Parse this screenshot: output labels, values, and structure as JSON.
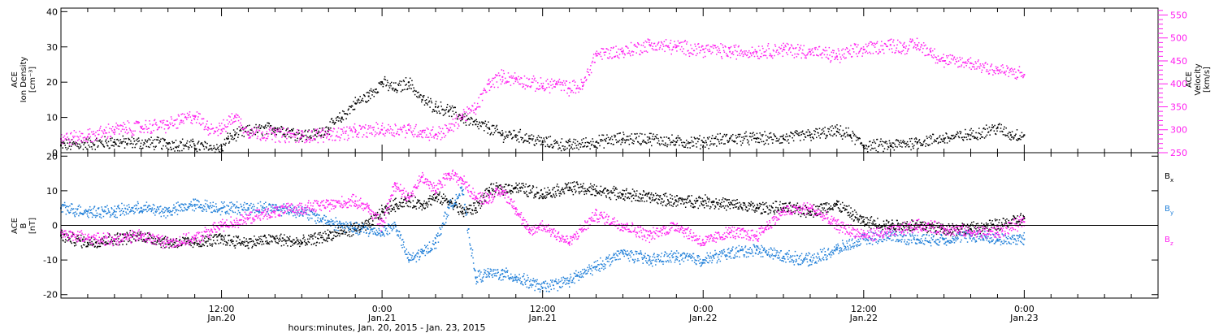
{
  "colors": {
    "black": "#000000",
    "magenta": "#ff20f0",
    "blue": "#1e7ed8",
    "axis": "#000000",
    "background": "#ffffff"
  },
  "xaxis": {
    "ticks": [
      {
        "time": "12:00",
        "date": "Jan.20",
        "hours": 12
      },
      {
        "time": "0:00",
        "date": "Jan.21",
        "hours": 24
      },
      {
        "time": "12:00",
        "date": "Jan.21",
        "hours": 36
      },
      {
        "time": "0:00",
        "date": "Jan.22",
        "hours": 48
      },
      {
        "time": "12:00",
        "date": "Jan.22",
        "hours": 60
      },
      {
        "time": "0:00",
        "date": "Jan.23",
        "hours": 72
      }
    ],
    "label": "hours:minutes, Jan. 20, 2015 - Jan. 23, 2015"
  },
  "chart_data": [
    {
      "type": "scatter",
      "xlabel": "hours:minutes, Jan. 20, 2015 - Jan. 23, 2015",
      "xlim": [
        0,
        82
      ],
      "ylabel_left": [
        "ACE",
        "Ion Density",
        "[cm⁻³]"
      ],
      "ylabel_right": [
        "ACE",
        "Velocity",
        "[km/s]"
      ],
      "ylim_left": [
        0,
        41
      ],
      "ylim_right": [
        250,
        565
      ],
      "yticks_left": [
        0,
        10,
        20,
        30,
        40
      ],
      "yticks_right": [
        250,
        300,
        350,
        400,
        450,
        500,
        550
      ],
      "series": [
        {
          "name": "Ion Density",
          "axis": "left",
          "color": "#000000",
          "x": [
            0,
            4,
            8,
            10,
            12,
            12.5,
            13,
            14,
            16,
            18,
            19,
            20,
            21,
            22,
            23,
            24,
            25,
            26,
            27,
            28,
            29,
            30,
            31,
            32,
            33,
            34,
            35,
            36,
            38,
            40,
            42,
            44,
            46,
            48,
            50,
            52,
            54,
            56,
            58,
            59,
            60,
            62,
            64,
            66,
            68,
            70,
            71,
            72
          ],
          "values": [
            2,
            3,
            2.5,
            2,
            1,
            4,
            5,
            6,
            7,
            5,
            5,
            7,
            10,
            14,
            16,
            20,
            18,
            20,
            15,
            13,
            12,
            10,
            8,
            7,
            5,
            5,
            4,
            3,
            2,
            3,
            4,
            4,
            3,
            3,
            4,
            4,
            4,
            5,
            6,
            5,
            2,
            2,
            3,
            4,
            5,
            7,
            5,
            5
          ]
        },
        {
          "name": "Velocity",
          "axis": "right",
          "color": "#ff20f0",
          "x": [
            0,
            2,
            4,
            6,
            8,
            9,
            10,
            11,
            12,
            13,
            14,
            16,
            18,
            20,
            22,
            24,
            26,
            27,
            28,
            29,
            30,
            31,
            32,
            33,
            34,
            36,
            37,
            38,
            39,
            40,
            42,
            44,
            46,
            48,
            50,
            52,
            54,
            56,
            58,
            60,
            62,
            63,
            64,
            65,
            66,
            68,
            70,
            72
          ],
          "values": [
            280,
            285,
            300,
            305,
            310,
            320,
            330,
            305,
            300,
            330,
            295,
            290,
            285,
            290,
            295,
            300,
            300,
            295,
            290,
            300,
            330,
            345,
            400,
            415,
            410,
            395,
            400,
            390,
            395,
            465,
            470,
            485,
            480,
            475,
            470,
            470,
            475,
            470,
            460,
            475,
            485,
            480,
            485,
            470,
            450,
            445,
            430,
            420
          ]
        }
      ]
    },
    {
      "type": "scatter",
      "xlabel": "hours:minutes, Jan. 20, 2015 - Jan. 23, 2015",
      "xlim": [
        0,
        82
      ],
      "ylabel": [
        "ACE",
        "B",
        "[nT]"
      ],
      "ylim": [
        -21,
        21
      ],
      "yticks": [
        -20,
        -10,
        0,
        10,
        20
      ],
      "legend": [
        "B",
        "B",
        "B"
      ],
      "legend_subscripts": [
        "x",
        "y",
        "z"
      ],
      "legend_colors": [
        "#000000",
        "#1e7ed8",
        "#ff20f0"
      ],
      "legend_position": "right",
      "series": [
        {
          "name": "Bx",
          "color": "#000000",
          "x": [
            0,
            2,
            4,
            6,
            8,
            10,
            12,
            14,
            16,
            18,
            20,
            22,
            23,
            24,
            25,
            26,
            27,
            28,
            29,
            30,
            31,
            32,
            34,
            36,
            38,
            40,
            42,
            44,
            46,
            48,
            50,
            52,
            54,
            56,
            58,
            60,
            62,
            64,
            66,
            68,
            70,
            72
          ],
          "values": [
            -3,
            -5,
            -4,
            -3,
            -5,
            -5,
            -4,
            -5,
            -4,
            -5,
            -3,
            -1,
            0,
            4,
            6,
            7,
            6,
            8,
            7,
            4,
            5,
            10,
            11,
            9,
            11,
            10,
            9,
            8,
            7,
            7,
            6,
            5,
            5,
            4,
            6,
            1,
            0,
            0,
            -1,
            -1,
            0,
            2
          ]
        },
        {
          "name": "By",
          "color": "#1e7ed8",
          "x": [
            0,
            2,
            4,
            6,
            8,
            10,
            12,
            14,
            16,
            18,
            20,
            22,
            24,
            25,
            26,
            27,
            28,
            29,
            30,
            31,
            32,
            33,
            34,
            36,
            38,
            40,
            42,
            44,
            46,
            48,
            50,
            52,
            54,
            56,
            58,
            60,
            62,
            64,
            66,
            68,
            70,
            72
          ],
          "values": [
            5,
            4,
            4,
            5,
            4,
            6,
            5,
            5,
            5,
            4,
            1,
            -1,
            -2,
            0,
            -10,
            -8,
            -5,
            5,
            10,
            -15,
            -14,
            -14,
            -15,
            -18,
            -16,
            -12,
            -8,
            -10,
            -9,
            -10,
            -8,
            -7,
            -9,
            -10,
            -7,
            -4,
            -3,
            -4,
            -4,
            -3,
            -4,
            -4
          ]
        },
        {
          "name": "Bz",
          "color": "#ff20f0",
          "x": [
            0,
            2,
            4,
            6,
            8,
            10,
            12,
            14,
            16,
            18,
            20,
            22,
            23,
            24,
            25,
            26,
            27,
            28,
            29,
            30,
            31,
            32,
            33,
            34,
            35,
            36,
            38,
            40,
            42,
            44,
            46,
            48,
            50,
            52,
            54,
            56,
            58,
            60,
            62,
            64,
            66,
            68,
            70,
            72
          ],
          "values": [
            -2,
            -4,
            -4,
            -3,
            -5,
            -4,
            0,
            2,
            4,
            5,
            6,
            7,
            5,
            0,
            12,
            8,
            14,
            10,
            15,
            13,
            8,
            8,
            10,
            5,
            -2,
            0,
            -5,
            3,
            0,
            -3,
            0,
            -5,
            -2,
            -3,
            4,
            5,
            0,
            -3,
            -2,
            0,
            -1,
            -2,
            -2,
            1
          ]
        }
      ]
    }
  ]
}
